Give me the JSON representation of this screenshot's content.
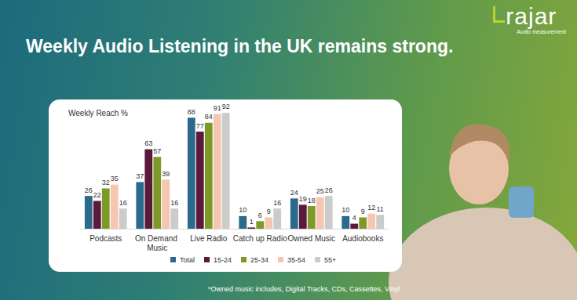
{
  "header": {
    "title": "Weekly Audio Listening in the UK remains strong.",
    "logo": "rajar",
    "logo_tagline": "Audio measurement"
  },
  "footnote": "*Owned music includes, Digital Tracks, CDs, Cassettes, Vinyl",
  "chart_data": {
    "type": "bar",
    "title": "Weekly Reach %",
    "categories": [
      "Podcasts",
      "On Demand Music",
      "Live Radio",
      "Catch up Radio",
      "Owned Music",
      "Audiobooks"
    ],
    "series": [
      {
        "name": "Total",
        "color": "#2b6a8c",
        "values": [
          26,
          37,
          88,
          10,
          24,
          10
        ]
      },
      {
        "name": "15-24",
        "color": "#5b1a3c",
        "values": [
          22,
          63,
          77,
          1,
          19,
          4
        ]
      },
      {
        "name": "25-34",
        "color": "#7c9a27",
        "values": [
          32,
          57,
          84,
          6,
          18,
          9
        ]
      },
      {
        "name": "35-54",
        "color": "#f6c7b0",
        "values": [
          35,
          39,
          91,
          9,
          25,
          12
        ]
      },
      {
        "name": "55+",
        "color": "#cbcbcb",
        "values": [
          16,
          16,
          92,
          16,
          26,
          11
        ]
      }
    ],
    "ylim": [
      0,
      100
    ],
    "grid": false,
    "legend": "bottom",
    "data_labels": true,
    "tick_labels": "x"
  }
}
